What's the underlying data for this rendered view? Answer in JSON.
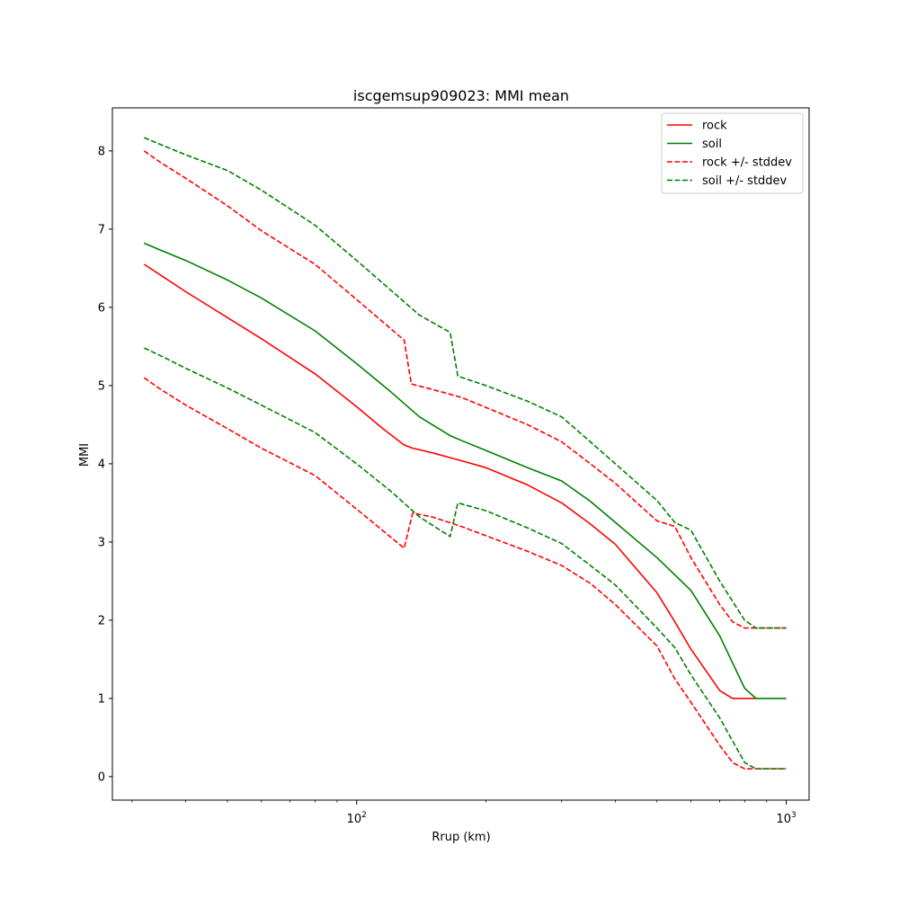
{
  "chart_data": {
    "type": "line",
    "title": "iscgemsup909023: MMI mean",
    "xlabel": "Rrup (km)",
    "ylabel": "MMI",
    "xscale": "log",
    "xlim": [
      27,
      1130
    ],
    "ylim": [
      -0.3,
      8.55
    ],
    "x_ticks": [
      {
        "value": 100,
        "base": "10",
        "exp": "2"
      },
      {
        "value": 1000,
        "base": "10",
        "exp": "3"
      }
    ],
    "y_ticks": [
      0,
      1,
      2,
      3,
      4,
      5,
      6,
      7,
      8
    ],
    "grid": false,
    "legend": {
      "position": "top-right",
      "entries": [
        "rock",
        "soil",
        "rock +/- stddev",
        "soil +/- stddev"
      ]
    },
    "series": [
      {
        "name": "rock",
        "color": "#ff0000",
        "dash": "solid",
        "x": [
          32,
          35,
          40,
          50,
          60,
          80,
          100,
          115,
          129,
          135,
          150,
          175,
          200,
          250,
          300,
          350,
          400,
          500,
          550,
          600,
          700,
          750,
          800,
          850
        ],
        "y": [
          6.55,
          6.41,
          6.2,
          5.87,
          5.6,
          5.15,
          4.73,
          4.45,
          4.24,
          4.2,
          4.14,
          4.04,
          3.95,
          3.73,
          3.5,
          3.23,
          2.97,
          2.35,
          1.98,
          1.63,
          1.1,
          1.0,
          1.0,
          1.0
        ]
      },
      {
        "name": "soil",
        "color": "#008000",
        "dash": "solid",
        "x": [
          32,
          35,
          40,
          50,
          60,
          80,
          100,
          120,
          140,
          165,
          175,
          200,
          250,
          300,
          350,
          400,
          500,
          600,
          700,
          800,
          850,
          1000
        ],
        "y": [
          6.82,
          6.73,
          6.6,
          6.35,
          6.12,
          5.7,
          5.28,
          4.92,
          4.6,
          4.36,
          4.3,
          4.17,
          3.95,
          3.78,
          3.52,
          3.25,
          2.8,
          2.38,
          1.8,
          1.13,
          1.0,
          1.0
        ]
      },
      {
        "name": "rock +/- stddev",
        "color": "#ff0000",
        "dash": "dashed",
        "x": [
          32,
          35,
          40,
          50,
          60,
          80,
          100,
          129,
          134,
          150,
          175,
          200,
          250,
          300,
          350,
          400,
          500,
          550,
          600,
          700,
          750,
          800,
          1000
        ],
        "y": [
          8.0,
          7.85,
          7.65,
          7.3,
          6.98,
          6.55,
          6.1,
          5.58,
          5.02,
          4.95,
          4.85,
          4.72,
          4.5,
          4.28,
          4.0,
          3.75,
          3.27,
          3.2,
          2.8,
          2.2,
          1.98,
          1.9,
          1.9
        ]
      },
      {
        "name": "rock +/- stddev",
        "color": "#ff0000",
        "dash": "dashed",
        "x": [
          32,
          35,
          40,
          50,
          60,
          80,
          100,
          129,
          135,
          150,
          175,
          200,
          250,
          300,
          350,
          400,
          500,
          550,
          600,
          700,
          750,
          800,
          1000
        ],
        "y": [
          5.1,
          4.95,
          4.75,
          4.45,
          4.2,
          3.85,
          3.42,
          2.92,
          3.37,
          3.32,
          3.2,
          3.08,
          2.88,
          2.7,
          2.47,
          2.2,
          1.67,
          1.25,
          0.95,
          0.4,
          0.18,
          0.1,
          0.1
        ]
      },
      {
        "name": "soil +/- stddev",
        "color": "#008000",
        "dash": "dashed",
        "x": [
          32,
          35,
          40,
          50,
          60,
          80,
          100,
          120,
          140,
          165,
          172,
          200,
          250,
          300,
          350,
          400,
          500,
          550,
          600,
          700,
          800,
          850,
          1000
        ],
        "y": [
          8.17,
          8.08,
          7.95,
          7.75,
          7.5,
          7.05,
          6.6,
          6.22,
          5.9,
          5.68,
          5.12,
          5.0,
          4.8,
          4.6,
          4.28,
          4.0,
          3.53,
          3.25,
          3.15,
          2.5,
          2.0,
          1.9,
          1.9
        ]
      },
      {
        "name": "soil +/- stddev",
        "color": "#008000",
        "dash": "dashed",
        "x": [
          32,
          35,
          40,
          50,
          60,
          80,
          100,
          120,
          140,
          165,
          172,
          200,
          250,
          300,
          350,
          400,
          500,
          550,
          600,
          700,
          800,
          850,
          1000
        ],
        "y": [
          5.48,
          5.38,
          5.22,
          4.97,
          4.75,
          4.4,
          4.0,
          3.65,
          3.32,
          3.07,
          3.5,
          3.4,
          3.18,
          2.98,
          2.7,
          2.45,
          1.9,
          1.65,
          1.3,
          0.75,
          0.18,
          0.1,
          0.1
        ]
      }
    ]
  }
}
